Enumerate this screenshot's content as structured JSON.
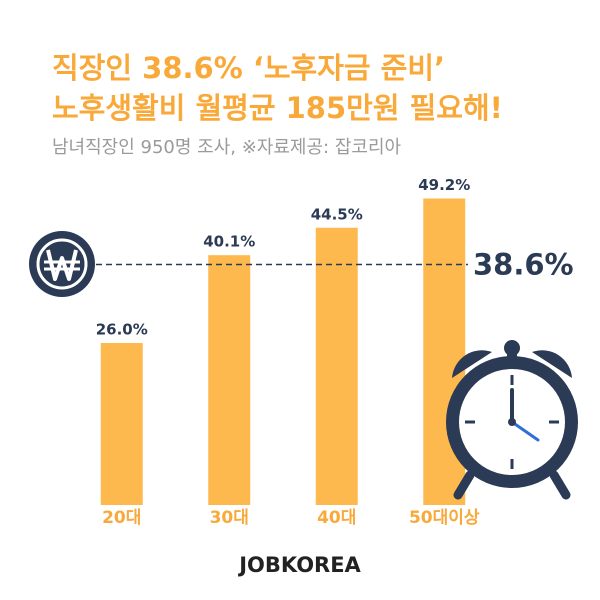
{
  "chart_data": {
    "type": "bar",
    "title": [
      "직장인 38.6% ‘노후자금 준비’",
      "노후생활비 월평균 185만원 필요해!"
    ],
    "subtitle": "남녀직장인 950명 조사, ※자료제공: 잡코리아",
    "categories": [
      "20대",
      "30대",
      "40대",
      "50대이상"
    ],
    "values": [
      26.0,
      40.1,
      44.5,
      49.2
    ],
    "value_labels": [
      "26.0%",
      "40.1%",
      "44.5%",
      "49.2%"
    ],
    "color": "#fdb94e",
    "reference_line": {
      "value": 38.6,
      "label": "38.6%"
    },
    "source": "JOBKOREA"
  }
}
